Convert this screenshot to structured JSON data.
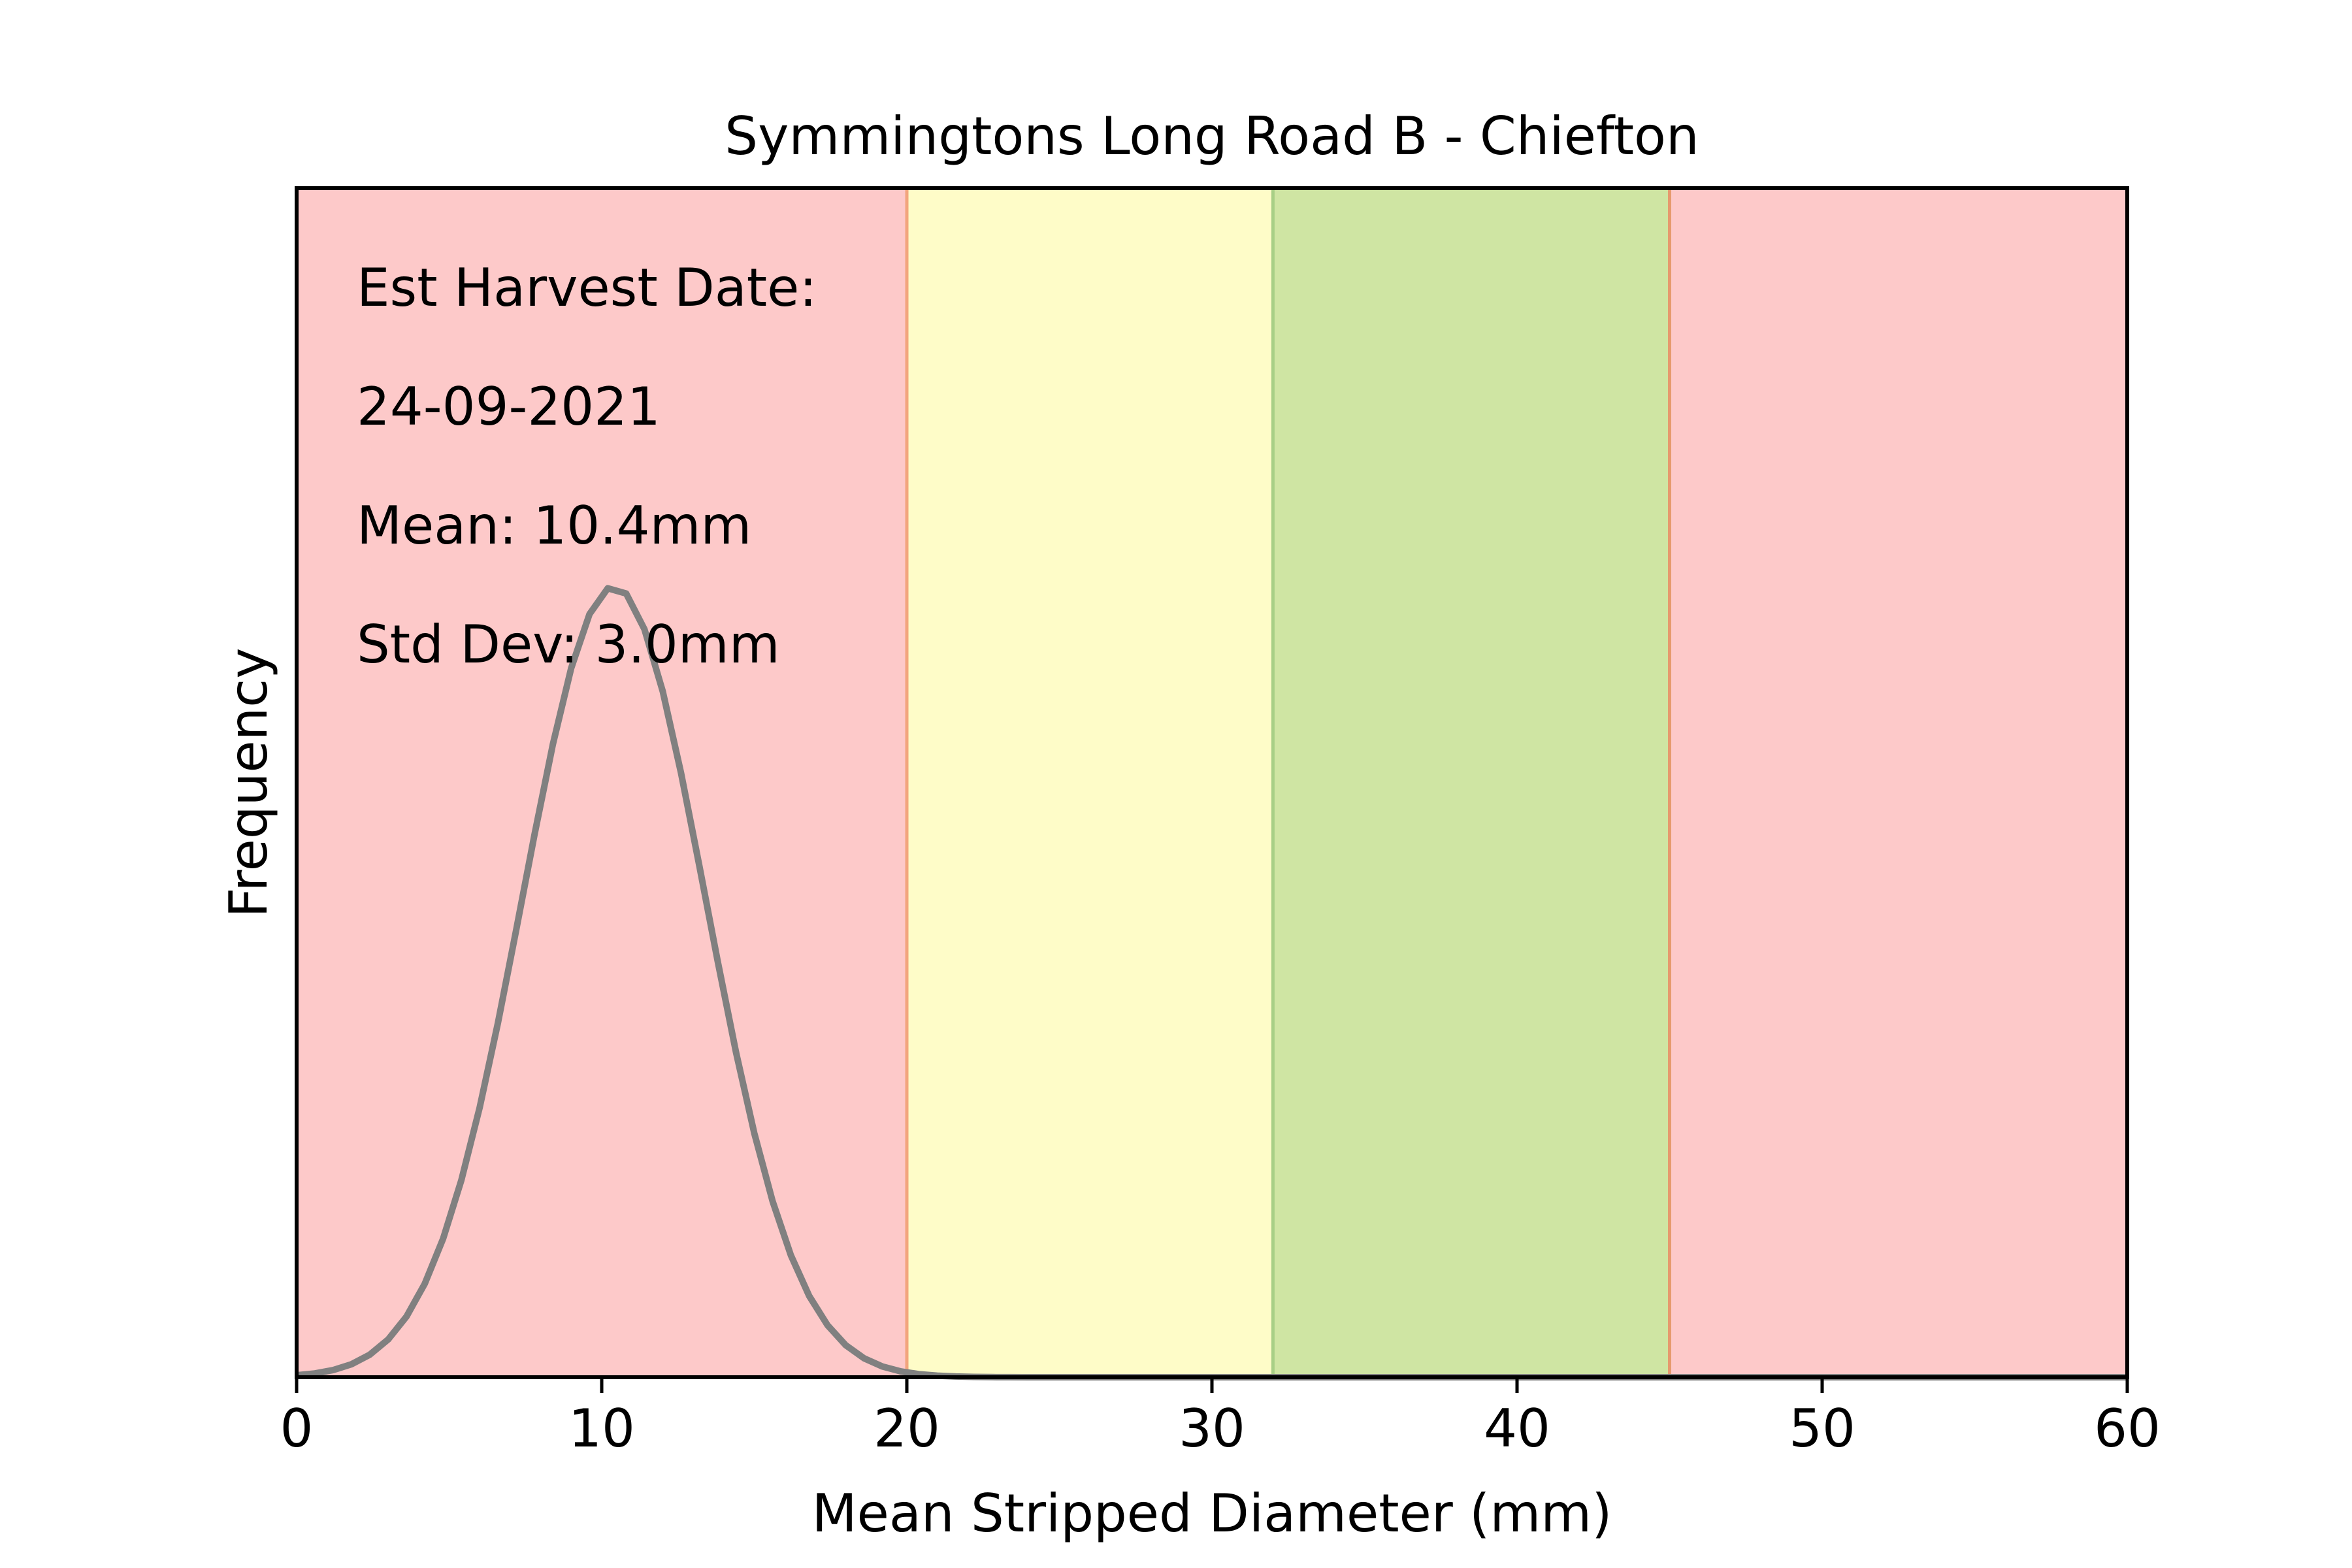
{
  "chart_data": {
    "type": "line",
    "title": "Symmingtons Long Road B - Chiefton",
    "xlabel": "Mean Stripped Diameter (mm)",
    "ylabel": "Frequency",
    "xlim": [
      0,
      60
    ],
    "ylim": [
      0,
      1
    ],
    "xticks": [
      "0",
      "10",
      "20",
      "30",
      "40",
      "50",
      "60"
    ],
    "yticks_shown": false,
    "grid": false,
    "bands": [
      {
        "x0": 0,
        "x1": 20,
        "color": "#fdc9c9"
      },
      {
        "x0": 20,
        "x1": 32,
        "color": "#fefcc8"
      },
      {
        "x0": 32,
        "x1": 45,
        "color": "#cfe5a3"
      },
      {
        "x0": 45,
        "x1": 60,
        "color": "#fdc9c9"
      }
    ],
    "band_edge_colors": [
      "#f2a57d",
      "#a8cf86",
      "#e69a6e"
    ],
    "distribution": {
      "mean": 10.4,
      "std": 3.0,
      "color": "#808080",
      "peak_fraction": 0.665
    },
    "annotations": [
      "Est Harvest Date:",
      "24-09-2021",
      "Mean: 10.4mm",
      "Std Dev: 3.0mm"
    ]
  }
}
